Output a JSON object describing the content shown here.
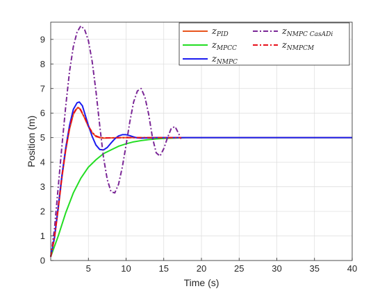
{
  "chart_data": {
    "type": "line",
    "title": "",
    "xlabel": "Time (s)",
    "ylabel": "Position (m)",
    "xlim": [
      0,
      40
    ],
    "ylim": [
      0,
      9.7
    ],
    "xticks": [
      5,
      10,
      15,
      20,
      25,
      30,
      35,
      40
    ],
    "yticks": [
      0,
      1,
      2,
      3,
      4,
      5,
      6,
      7,
      8,
      9
    ],
    "grid": true,
    "legend_position": "top-right",
    "series": [
      {
        "name_main": "z",
        "name_sub": "PID",
        "color": "#e8541c",
        "dash": "solid",
        "x": [
          0,
          0.5,
          1,
          1.5,
          2,
          2.5,
          3,
          3.5,
          3.8,
          4,
          4.5,
          5,
          5.5,
          6,
          6.5,
          7,
          8,
          9,
          10,
          12,
          15,
          20,
          40
        ],
        "y": [
          0.15,
          0.9,
          2.1,
          3.4,
          4.5,
          5.35,
          5.95,
          6.2,
          6.2,
          6.1,
          5.8,
          5.45,
          5.2,
          5.05,
          5.0,
          4.98,
          4.99,
          5.0,
          5.0,
          5.0,
          5.0,
          5.0,
          5.0
        ]
      },
      {
        "name_main": "z",
        "name_sub": "MPCC",
        "color": "#22dd22",
        "dash": "solid",
        "x": [
          0,
          1,
          2,
          3,
          4,
          5,
          6,
          7,
          8,
          9,
          10,
          11,
          12,
          13,
          14,
          15,
          16,
          17,
          18,
          20,
          25,
          40
        ],
        "y": [
          0.15,
          1.0,
          1.95,
          2.75,
          3.35,
          3.8,
          4.1,
          4.35,
          4.5,
          4.65,
          4.75,
          4.83,
          4.88,
          4.92,
          4.95,
          4.97,
          4.98,
          4.99,
          5.0,
          5.0,
          5.0,
          5.0
        ]
      },
      {
        "name_main": "z",
        "name_sub": "NMPC",
        "color": "#1b1bf0",
        "dash": "solid",
        "x": [
          0,
          0.5,
          1,
          1.5,
          2,
          2.5,
          3,
          3.5,
          3.8,
          4.2,
          4.6,
          5,
          5.5,
          6,
          6.5,
          7,
          7.5,
          8,
          8.5,
          9,
          9.5,
          10,
          10.5,
          11,
          11.5,
          12,
          13,
          14,
          15,
          16,
          20,
          40
        ],
        "y": [
          0.15,
          0.95,
          2.2,
          3.5,
          4.6,
          5.5,
          6.15,
          6.42,
          6.45,
          6.3,
          5.9,
          5.5,
          5.05,
          4.7,
          4.52,
          4.5,
          4.6,
          4.78,
          4.95,
          5.07,
          5.12,
          5.12,
          5.08,
          5.03,
          4.99,
          4.98,
          4.99,
          5.0,
          5.0,
          5.0,
          5.0,
          5.0
        ]
      },
      {
        "name_main": "z",
        "name_sub": "NMPC CasADi",
        "color": "#7a2696",
        "dash": "dashdot",
        "x": [
          0,
          0.5,
          1,
          1.5,
          2,
          2.5,
          3,
          3.5,
          4,
          4.5,
          5,
          5.5,
          6,
          6.5,
          7,
          7.5,
          8,
          8.5,
          9,
          9.5,
          10,
          10.5,
          11,
          11.5,
          12,
          12.5,
          13,
          13.5,
          14,
          14.5,
          15,
          15.5,
          16,
          16.5,
          17,
          17.3
        ],
        "y": [
          0.15,
          1.3,
          3.0,
          4.7,
          6.3,
          7.7,
          8.7,
          9.3,
          9.55,
          9.4,
          8.95,
          8.1,
          6.9,
          5.5,
          4.2,
          3.3,
          2.8,
          2.75,
          3.1,
          3.8,
          4.7,
          5.65,
          6.45,
          6.9,
          7.0,
          6.65,
          5.95,
          5.0,
          4.38,
          4.25,
          4.55,
          5.0,
          5.38,
          5.45,
          5.15,
          4.95
        ]
      },
      {
        "name_main": "z",
        "name_sub": "NMPCM",
        "color": "#e8101a",
        "dash": "dashdot",
        "x": [
          0,
          0.5,
          1,
          1.5,
          2,
          2.5,
          3,
          3.5,
          3.8,
          4,
          4.5,
          5,
          5.5,
          6,
          6.5,
          7,
          8,
          10,
          12,
          15,
          17.3
        ],
        "y": [
          0.15,
          0.95,
          2.15,
          3.45,
          4.55,
          5.4,
          5.98,
          6.22,
          6.23,
          6.12,
          5.82,
          5.47,
          5.22,
          5.07,
          5.01,
          4.99,
          4.99,
          5.0,
          5.0,
          5.0,
          5.0
        ]
      }
    ]
  }
}
